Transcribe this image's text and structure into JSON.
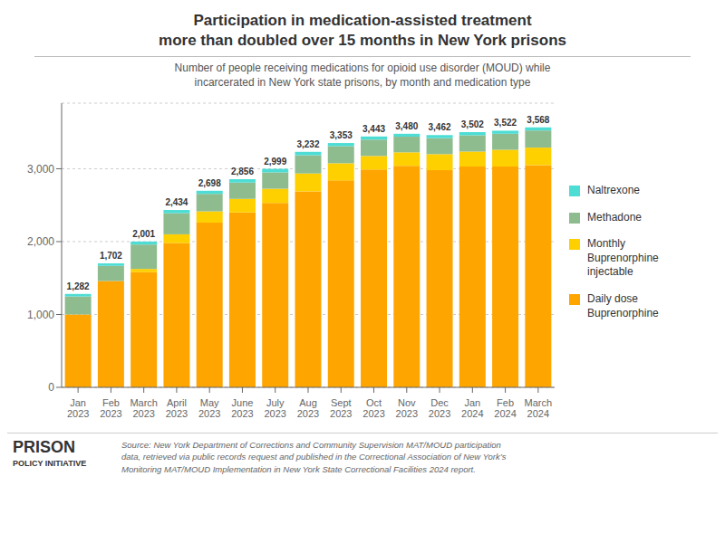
{
  "chart_data": {
    "type": "bar",
    "stacked": true,
    "title": "Participation in medication-assisted treatment\nmore than doubled over 15 months in New York prisons",
    "subtitle": "Number of people receiving medications for opioid use disorder (MOUD) while\nincarcerated in New York state prisons, by month and medication type",
    "categories": [
      "Jan\n2023",
      "Feb\n2023",
      "March\n2023",
      "April\n2023",
      "May\n2023",
      "June\n2023",
      "July\n2023",
      "Aug\n2023",
      "Sept\n2023",
      "Oct\n2023",
      "Nov\n2023",
      "Dec\n2023",
      "Jan\n2024",
      "Feb\n2024",
      "March\n2024"
    ],
    "series": [
      {
        "name": "Daily dose\nBuprenorphine",
        "color": "#FFA500",
        "values": [
          1000,
          1460,
          1580,
          1980,
          2260,
          2400,
          2530,
          2690,
          2840,
          2990,
          3040,
          2980,
          3030,
          3030,
          3050
        ]
      },
      {
        "name": "Monthly\nBuprenorphine\ninjectable",
        "color": "#FFD000",
        "values": [
          0,
          0,
          45,
          120,
          155,
          185,
          195,
          245,
          235,
          185,
          185,
          220,
          205,
          230,
          240
        ]
      },
      {
        "name": "Methadone",
        "color": "#8FBC8F",
        "values": [
          247,
          207,
          335,
          290,
          240,
          225,
          225,
          250,
          235,
          225,
          215,
          220,
          225,
          220,
          235
        ]
      },
      {
        "name": "Naltrexone",
        "color": "#4DDDD4",
        "values": [
          35,
          35,
          41,
          44,
          43,
          46,
          49,
          47,
          43,
          43,
          40,
          42,
          42,
          42,
          43
        ]
      }
    ],
    "totals": [
      1282,
      1702,
      2001,
      2434,
      2698,
      2856,
      2999,
      3232,
      3353,
      3443,
      3480,
      3462,
      3502,
      3522,
      3568
    ],
    "total_labels": [
      "1,282",
      "1,702",
      "2,001",
      "2,434",
      "2,698",
      "2,856",
      "2,999",
      "3,232",
      "3,353",
      "3,443",
      "3,480",
      "3,462",
      "3,502",
      "3,522",
      "3,568"
    ],
    "ylim": [
      0,
      3900
    ],
    "yticks": [
      0,
      {
        "value": 1000,
        "label": "1,000"
      },
      {
        "value": 2000,
        "label": "2,000"
      },
      {
        "value": 3000,
        "label": "3,000"
      }
    ],
    "grid": true,
    "legend": "right",
    "footer": [
      "Source: New York Department of Corrections and Community Supervision MAT/MOUD participation",
      "data, retrieved via public records request and published in the Correctional Association of New York’s",
      "Monitoring MAT/MOUD Implementation in New York State Correctional Facilities 2024 report."
    ],
    "annotations": [
      "PRISON",
      "POLICY INITIATIVE"
    ]
  }
}
